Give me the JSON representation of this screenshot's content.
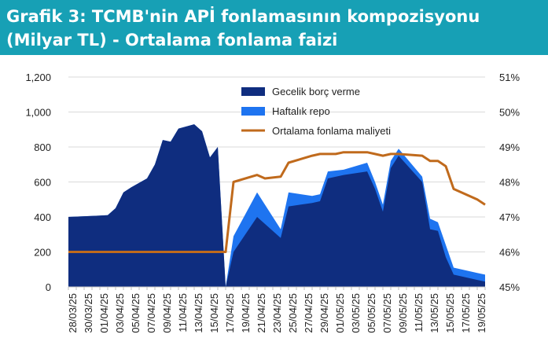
{
  "header": {
    "title_line1": "Grafik 3: TCMB'nin APİ fonlamasının kompozisyonu",
    "title_line2": "(Milyar TL) - Ortalama fonlama faizi",
    "background_color": "#17a0b5"
  },
  "chart_data": {
    "type": "area",
    "title": "Grafik 3: TCMB'nin APİ fonlamasının kompozisyonu (Milyar TL) - Ortalama fonlama faizi",
    "x_tick_labels": [
      "28/03/25",
      "30/03/25",
      "01/04/25",
      "03/04/25",
      "05/04/25",
      "07/04/25",
      "09/04/25",
      "11/04/25",
      "13/04/25",
      "15/04/25",
      "17/04/25",
      "19/04/25",
      "21/04/25",
      "23/04/25",
      "25/04/25",
      "27/04/25",
      "29/04/25",
      "01/05/25",
      "03/05/25",
      "05/05/25",
      "07/05/25",
      "09/05/25",
      "11/05/25",
      "13/05/25",
      "15/05/25",
      "17/05/25",
      "19/05/25"
    ],
    "x_start": "2025-03-28",
    "x_end": "2025-05-20",
    "ylim_left": [
      0,
      1200
    ],
    "yticks_left": [
      "0",
      "200",
      "400",
      "600",
      "800",
      "1,000",
      "1,200"
    ],
    "ylim_right": [
      45,
      51
    ],
    "yticks_right": [
      "45%",
      "46%",
      "47%",
      "48%",
      "49%",
      "50%",
      "51%"
    ],
    "legend": {
      "position": "top-center",
      "entries": [
        "Gecelik borç verme",
        "Haftalık repo",
        "Ortalama fonlama maliyeti"
      ]
    },
    "colors": {
      "gecelik": "#0f2d7f",
      "haftalik": "#1e74f0",
      "ortalama": "#c06a1c"
    },
    "series": [
      {
        "name": "Gecelik borç verme",
        "type": "area",
        "x": [
          "2025-03-28",
          "2025-04-02",
          "2025-04-03",
          "2025-04-04",
          "2025-04-05",
          "2025-04-07",
          "2025-04-08",
          "2025-04-09",
          "2025-04-10",
          "2025-04-11",
          "2025-04-13",
          "2025-04-14",
          "2025-04-15",
          "2025-04-16",
          "2025-04-17",
          "2025-04-18",
          "2025-04-21",
          "2025-04-24",
          "2025-04-25",
          "2025-04-28",
          "2025-04-29",
          "2025-04-30",
          "2025-05-02",
          "2025-05-05",
          "2025-05-06",
          "2025-05-07",
          "2025-05-08",
          "2025-05-09",
          "2025-05-12",
          "2025-05-13",
          "2025-05-14",
          "2025-05-15",
          "2025-05-16",
          "2025-05-19",
          "2025-05-20"
        ],
        "values": [
          400,
          410,
          450,
          540,
          570,
          620,
          700,
          840,
          830,
          905,
          930,
          890,
          740,
          800,
          0,
          200,
          400,
          280,
          460,
          480,
          490,
          620,
          640,
          660,
          560,
          430,
          680,
          750,
          600,
          330,
          320,
          170,
          70,
          40,
          30
        ]
      },
      {
        "name": "Haftalık repo",
        "type": "area",
        "x": [
          "2025-03-28",
          "2025-04-02",
          "2025-04-03",
          "2025-04-04",
          "2025-04-05",
          "2025-04-07",
          "2025-04-08",
          "2025-04-09",
          "2025-04-10",
          "2025-04-11",
          "2025-04-13",
          "2025-04-14",
          "2025-04-15",
          "2025-04-16",
          "2025-04-17",
          "2025-04-18",
          "2025-04-21",
          "2025-04-24",
          "2025-04-25",
          "2025-04-28",
          "2025-04-29",
          "2025-04-30",
          "2025-05-02",
          "2025-05-05",
          "2025-05-06",
          "2025-05-07",
          "2025-05-08",
          "2025-05-09",
          "2025-05-12",
          "2025-05-13",
          "2025-05-14",
          "2025-05-15",
          "2025-05-16",
          "2025-05-19",
          "2025-05-20"
        ],
        "values": [
          0,
          0,
          0,
          0,
          0,
          0,
          0,
          0,
          0,
          0,
          0,
          0,
          0,
          0,
          0,
          90,
          140,
          50,
          80,
          40,
          40,
          40,
          30,
          50,
          40,
          40,
          40,
          40,
          30,
          60,
          50,
          70,
          40,
          40,
          40
        ]
      },
      {
        "name": "Ortalama fonlama maliyeti",
        "type": "line",
        "axis": "right",
        "x": [
          "2025-03-28",
          "2025-04-17",
          "2025-04-18",
          "2025-04-21",
          "2025-04-22",
          "2025-04-24",
          "2025-04-25",
          "2025-04-28",
          "2025-04-29",
          "2025-04-30",
          "2025-05-01",
          "2025-05-02",
          "2025-05-05",
          "2025-05-06",
          "2025-05-07",
          "2025-05-08",
          "2025-05-09",
          "2025-05-12",
          "2025-05-13",
          "2025-05-14",
          "2025-05-15",
          "2025-05-16",
          "2025-05-19",
          "2025-05-20"
        ],
        "values": [
          46.0,
          46.0,
          48.0,
          48.2,
          48.1,
          48.15,
          48.55,
          48.75,
          48.8,
          48.8,
          48.8,
          48.85,
          48.85,
          48.8,
          48.75,
          48.8,
          48.8,
          48.75,
          48.6,
          48.6,
          48.45,
          47.8,
          47.5,
          47.35
        ]
      }
    ]
  }
}
